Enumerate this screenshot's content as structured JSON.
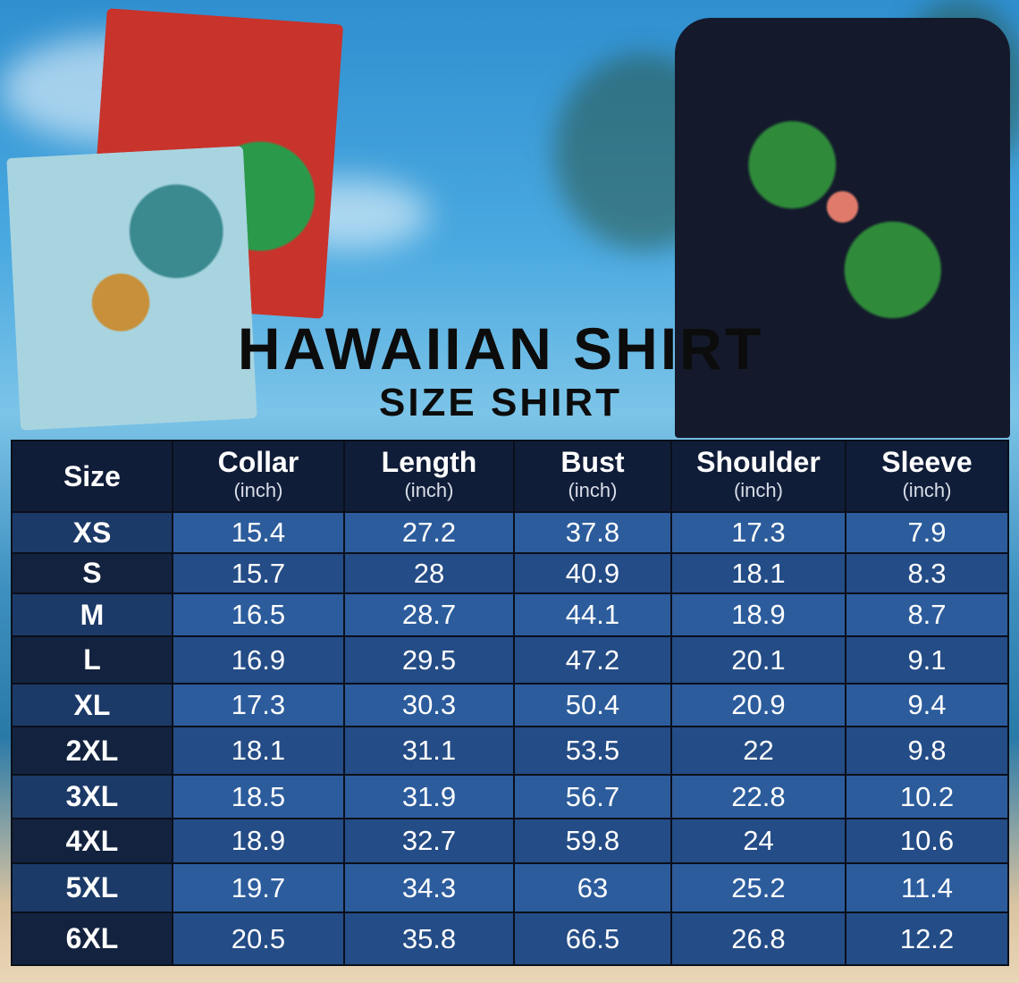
{
  "title": "HAWAIIAN SHIRT",
  "subtitle": "SIZE SHIRT",
  "table": {
    "headers": [
      {
        "label": "Size",
        "unit": ""
      },
      {
        "label": "Collar",
        "unit": "(inch)"
      },
      {
        "label": "Length",
        "unit": "(inch)"
      },
      {
        "label": "Bust",
        "unit": "(inch)"
      },
      {
        "label": "Shoulder",
        "unit": "(inch)"
      },
      {
        "label": "Sleeve",
        "unit": "(inch)"
      }
    ],
    "rows": [
      [
        "XS",
        "15.4",
        "27.2",
        "37.8",
        "17.3",
        "7.9"
      ],
      [
        "S",
        "15.7",
        "28",
        "40.9",
        "18.1",
        "8.3"
      ],
      [
        "M",
        "16.5",
        "28.7",
        "44.1",
        "18.9",
        "8.7"
      ],
      [
        "L",
        "16.9",
        "29.5",
        "47.2",
        "20.1",
        "9.1"
      ],
      [
        "XL",
        "17.3",
        "30.3",
        "50.4",
        "20.9",
        "9.4"
      ],
      [
        "2XL",
        "18.1",
        "31.1",
        "53.5",
        "22",
        "9.8"
      ],
      [
        "3XL",
        "18.5",
        "31.9",
        "56.7",
        "22.8",
        "10.2"
      ],
      [
        "4XL",
        "18.9",
        "32.7",
        "59.8",
        "24",
        "10.6"
      ],
      [
        "5XL",
        "19.7",
        "34.3",
        "63",
        "25.2",
        "11.4"
      ],
      [
        "6XL",
        "20.5",
        "35.8",
        "66.5",
        "26.8",
        "12.2"
      ]
    ]
  },
  "colors": {
    "header": "#101d38",
    "row_light": "#2c5c9c",
    "row_dark": "#244c86"
  }
}
